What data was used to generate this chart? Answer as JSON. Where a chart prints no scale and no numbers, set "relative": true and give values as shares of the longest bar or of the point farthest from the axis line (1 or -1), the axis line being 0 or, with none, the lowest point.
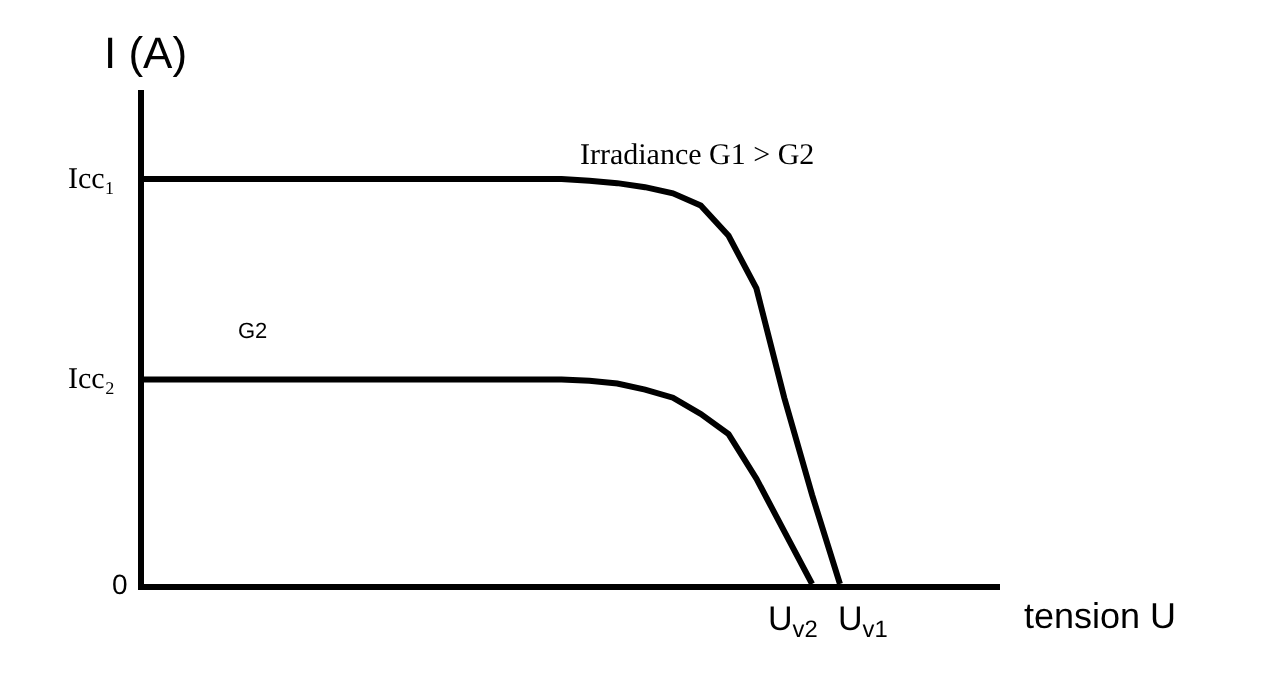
{
  "chart_data": {
    "type": "line",
    "relative": true,
    "ylabel": "I (A)",
    "legend": false,
    "marker": "none",
    "line_style": "solid",
    "categories": [
      null,
      null,
      null,
      null,
      null,
      null,
      null,
      null,
      null,
      null,
      null,
      null,
      null,
      null,
      null,
      null,
      null,
      null,
      null,
      null,
      null,
      null,
      null,
      null,
      null,
      null
    ],
    "series": [
      {
        "name": "Irradiance G1 > G2",
        "color": "#000000",
        "values": [
          1,
          1,
          1,
          1,
          1,
          1,
          1,
          1,
          1,
          1,
          1,
          1,
          1,
          1,
          1,
          1,
          0.996,
          0.99,
          0.98,
          0.965,
          0.935,
          0.86,
          0.73,
          0.46,
          0.22,
          0
        ]
      },
      {
        "name": "G2",
        "color": "#000000",
        "values": [
          0.505,
          0.505,
          0.505,
          0.505,
          0.505,
          0.505,
          0.505,
          0.505,
          0.505,
          0.505,
          0.505,
          0.505,
          0.505,
          0.505,
          0.505,
          0.505,
          0.502,
          0.495,
          0.48,
          0.46,
          0.42,
          0.37,
          0.26,
          0.13,
          0,
          null
        ]
      }
    ],
    "annotations": [
      "Icc₁",
      "Icc₂",
      "0",
      "U$_{v2}$",
      "U$_{v1}$",
      "tension U"
    ]
  }
}
